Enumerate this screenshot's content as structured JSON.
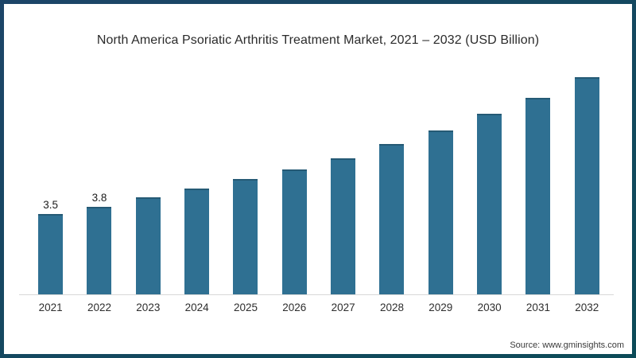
{
  "frame": {
    "border_top_color": "#1d4568",
    "border_bottom_color": "#0c4b58"
  },
  "chart": {
    "source": "Source: www.gminsights.com"
  },
  "chart_data": {
    "type": "bar",
    "title": "North America Psoriatic Arthritis Treatment Market, 2021 – 2032 (USD Billion)",
    "categories": [
      "2021",
      "2022",
      "2023",
      "2024",
      "2025",
      "2026",
      "2027",
      "2028",
      "2029",
      "2030",
      "2031",
      "2032"
    ],
    "values": [
      3.5,
      3.8,
      4.2,
      4.6,
      5.0,
      5.4,
      5.9,
      6.5,
      7.1,
      7.8,
      8.5,
      9.4
    ],
    "data_labels": [
      "3.5",
      "3.8",
      "",
      "",
      "",
      "",
      "",
      "",
      "",
      "",
      "",
      ""
    ],
    "xlabel": "",
    "ylabel": "",
    "ylim": [
      0,
      10
    ],
    "grid": false,
    "legend": "none",
    "y_axis_visible": false,
    "bar_color": "#2f7092",
    "bar_top_edge_color": "#255a75",
    "axis_line_color": "#d8d8d8"
  }
}
